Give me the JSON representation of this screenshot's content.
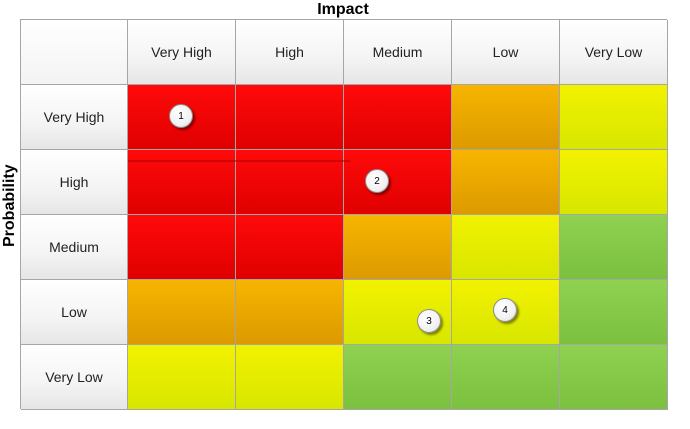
{
  "axes": {
    "x_title": "Impact",
    "y_title": "Probability"
  },
  "columns": [
    "Very High",
    "High",
    "Medium",
    "Low",
    "Very Low"
  ],
  "rows": [
    "Very High",
    "High",
    "Medium",
    "Low",
    "Very Low"
  ],
  "matrix": [
    [
      "red",
      "red",
      "red",
      "orange",
      "yellow"
    ],
    [
      "red",
      "red",
      "red",
      "orange",
      "yellow"
    ],
    [
      "red",
      "red",
      "orange",
      "yellow",
      "green"
    ],
    [
      "orange",
      "orange",
      "yellow",
      "yellow",
      "green"
    ],
    [
      "yellow",
      "yellow",
      "green",
      "green",
      "green"
    ]
  ],
  "colors": {
    "red": "#ff0a0a",
    "orange": "#f0ab00",
    "yellow": "#f2f200",
    "green": "#8fd150"
  },
  "markers": [
    {
      "label": "1",
      "probability": "Very High",
      "impact": "Very High"
    },
    {
      "label": "2",
      "probability": "High",
      "impact": "Medium"
    },
    {
      "label": "3",
      "probability": "Low",
      "impact": "Medium"
    },
    {
      "label": "4",
      "probability": "Low",
      "impact": "Low"
    }
  ]
}
